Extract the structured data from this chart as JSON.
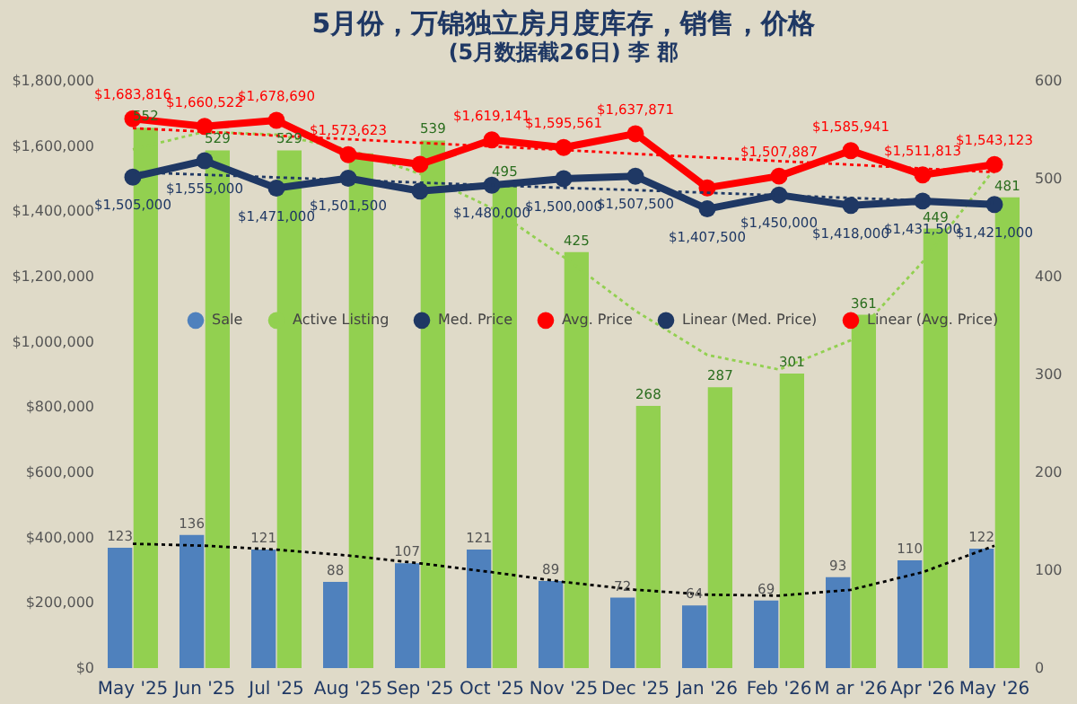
{
  "chart_data": {
    "type": "bar",
    "title": "5月份，万锦独立房月度库存，销售，价格",
    "subtitle": "(5月数据截26日) 李 郡",
    "categories": [
      "May '25",
      "Jun '25",
      "Jul '25",
      "Aug '25",
      "Sep '25",
      "Oct '25",
      "Nov '25",
      "Dec '25",
      "Jan '26",
      "Feb '26",
      "M ar '26",
      "Apr '26",
      "May '26"
    ],
    "series": [
      {
        "name": "Sale",
        "axis": "y2",
        "color": "#4f81bd",
        "values": [
          123,
          136,
          121,
          88,
          107,
          121,
          89,
          72,
          64,
          69,
          93,
          110,
          122
        ],
        "value_labels": [
          "123",
          "136",
          "121",
          "88",
          "107",
          "121",
          "89",
          "72",
          "64",
          "69",
          "93",
          "110",
          "122"
        ]
      },
      {
        "name": "Active Listing",
        "axis": "y2",
        "color": "#92d050",
        "values": [
          552,
          529,
          529,
          526,
          539,
          495,
          425,
          268,
          287,
          301,
          361,
          449,
          481
        ],
        "value_labels": [
          "552",
          "529",
          "529",
          null,
          "539",
          "495",
          "425",
          "268",
          "287",
          "301",
          "361",
          "449",
          "481"
        ]
      },
      {
        "name": "Med. Price",
        "type": "line",
        "marker": "circle",
        "color": "#1f3864",
        "values": [
          1505000,
          1555000,
          1471000,
          1501500,
          1462000,
          1480000,
          1500000,
          1507500,
          1407500,
          1450000,
          1418000,
          1431500,
          1421000
        ],
        "value_labels": [
          "$1,505,000",
          "$1,555,000",
          "$1,471,000",
          "$1,501,500",
          null,
          "$1,480,000",
          "$1,500,000",
          "$1,507,500",
          "$1,407,500",
          "$1,450,000",
          "$1,418,000",
          "$1,431,500",
          "$1,421,000"
        ]
      },
      {
        "name": "Avg. Price",
        "type": "line",
        "marker": "circle",
        "color": "#ff0000",
        "values": [
          1683816,
          1660522,
          1678690,
          1573623,
          1544000,
          1619141,
          1595561,
          1637871,
          1472000,
          1507887,
          1585941,
          1511813,
          1543123
        ],
        "value_labels": [
          "$1,683,816",
          "$1,660,522",
          "$1,678,690",
          "$1,573,623",
          null,
          "$1,619,141",
          "$1,595,561",
          "$1,637,871",
          null,
          "$1,507,887",
          "$1,585,941",
          "$1,511,813",
          "$1,543,123"
        ]
      },
      {
        "name": "Linear (Med. Price)",
        "type": "line",
        "line_style": "dotted",
        "color": "#1f3864",
        "values": [
          1520000,
          1512000,
          1504000,
          1496000,
          1488000,
          1480000,
          1472000,
          1465000,
          1457000,
          1449000,
          1441000,
          1433000,
          1425000
        ]
      },
      {
        "name": "Linear (Avg. Price)",
        "type": "line",
        "line_style": "dotted",
        "color": "#ff0000",
        "values": [
          1655000,
          1644000,
          1632000,
          1621000,
          1610000,
          1599000,
          1588000,
          1576000,
          1565000,
          1554000,
          1543000,
          1531000,
          1520000
        ]
      },
      {
        "type": "line",
        "axis": "y2",
        "line_style": "dotted",
        "color": "#000000",
        "values": [
          127,
          125,
          121,
          115,
          107,
          98,
          88,
          80,
          75,
          74,
          80,
          98,
          125
        ]
      },
      {
        "type": "line",
        "axis": "y2",
        "line_style": "dotted",
        "color": "#92d050",
        "values": [
          530,
          548,
          545,
          530,
          505,
          470,
          420,
          365,
          320,
          305,
          335,
          415,
          510
        ]
      }
    ],
    "ylim": [
      0,
      1800000
    ],
    "yticks": [
      {
        "value": 0,
        "label": "$0"
      },
      {
        "value": 200000,
        "label": "$200,000"
      },
      {
        "value": 400000,
        "label": "$400,000"
      },
      {
        "value": 600000,
        "label": "$600,000"
      },
      {
        "value": 800000,
        "label": "$800,000"
      },
      {
        "value": 1000000,
        "label": "$1,000,000"
      },
      {
        "value": 1200000,
        "label": "$1,200,000"
      },
      {
        "value": 1400000,
        "label": "$1,400,000"
      },
      {
        "value": 1600000,
        "label": "$1,600,000"
      },
      {
        "value": 1800000,
        "label": "$1,800,000"
      }
    ],
    "y2lim": [
      0,
      600
    ],
    "y2ticks": [
      0,
      100,
      200,
      300,
      400,
      500,
      600
    ],
    "legend": "center"
  }
}
